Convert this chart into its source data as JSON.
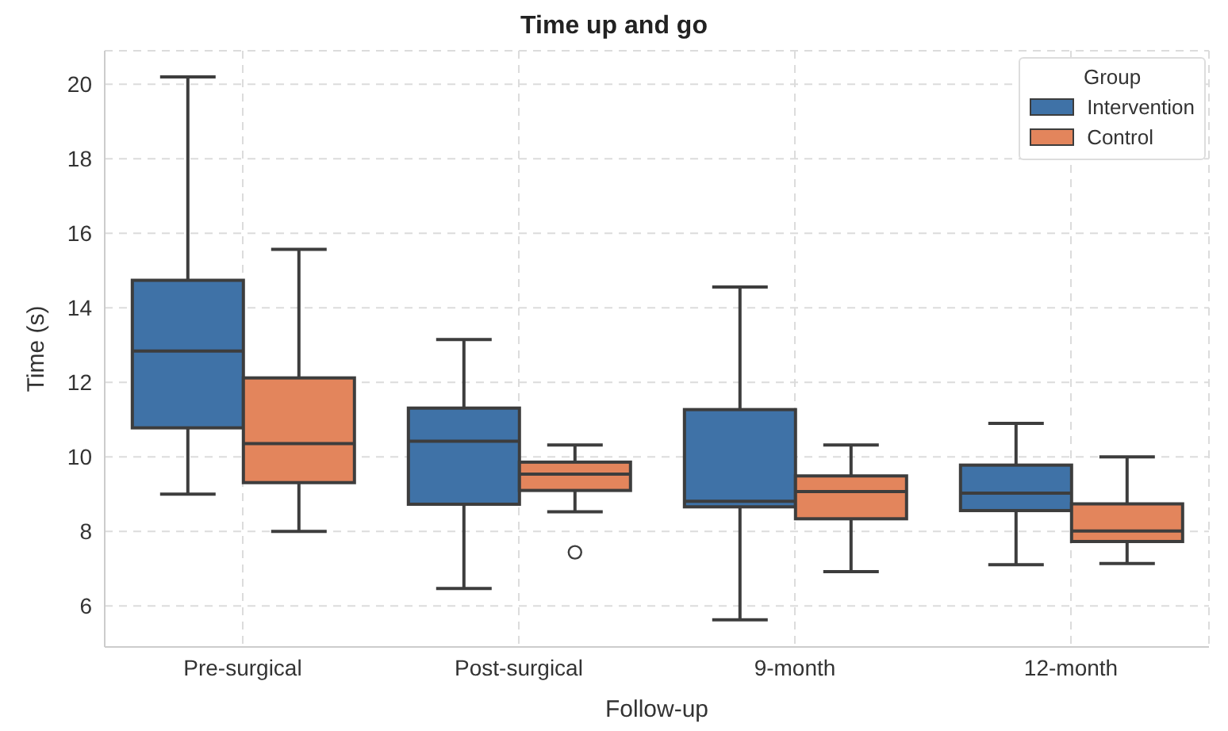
{
  "chart_data": {
    "type": "box",
    "title": "Time up and go",
    "xlabel": "Follow-up",
    "ylabel": "Time (s)",
    "legend_title": "Group",
    "legend": "top right",
    "grid": true,
    "categories": [
      "Pre-surgical",
      "Post-surgical",
      "9-month",
      "12-month"
    ],
    "ylim": [
      4.9,
      20.9
    ],
    "yticks": [
      6,
      8,
      10,
      12,
      14,
      16,
      18,
      20
    ],
    "series": [
      {
        "name": "Intervention",
        "color": "#3f72a7",
        "boxes": [
          {
            "low": 9.0,
            "q1": 10.78,
            "median": 12.84,
            "q3": 14.74,
            "high": 20.2
          },
          {
            "low": 6.47,
            "q1": 8.73,
            "median": 10.42,
            "q3": 11.31,
            "high": 13.15
          },
          {
            "low": 5.63,
            "q1": 8.66,
            "median": 8.81,
            "q3": 11.27,
            "high": 14.56
          },
          {
            "low": 7.11,
            "q1": 8.56,
            "median": 9.03,
            "q3": 9.78,
            "high": 10.9
          }
        ]
      },
      {
        "name": "Control",
        "color": "#e3855c",
        "boxes": [
          {
            "low": 8.0,
            "q1": 9.31,
            "median": 10.36,
            "q3": 12.12,
            "high": 15.57
          },
          {
            "low": 8.53,
            "q1": 9.1,
            "median": 9.54,
            "q3": 9.86,
            "high": 10.32,
            "outliers": [
              7.44
            ]
          },
          {
            "low": 6.92,
            "q1": 8.34,
            "median": 9.07,
            "q3": 9.49,
            "high": 10.32
          },
          {
            "low": 7.14,
            "q1": 7.73,
            "median": 8.01,
            "q3": 8.74,
            "high": 10.0
          }
        ]
      }
    ]
  }
}
